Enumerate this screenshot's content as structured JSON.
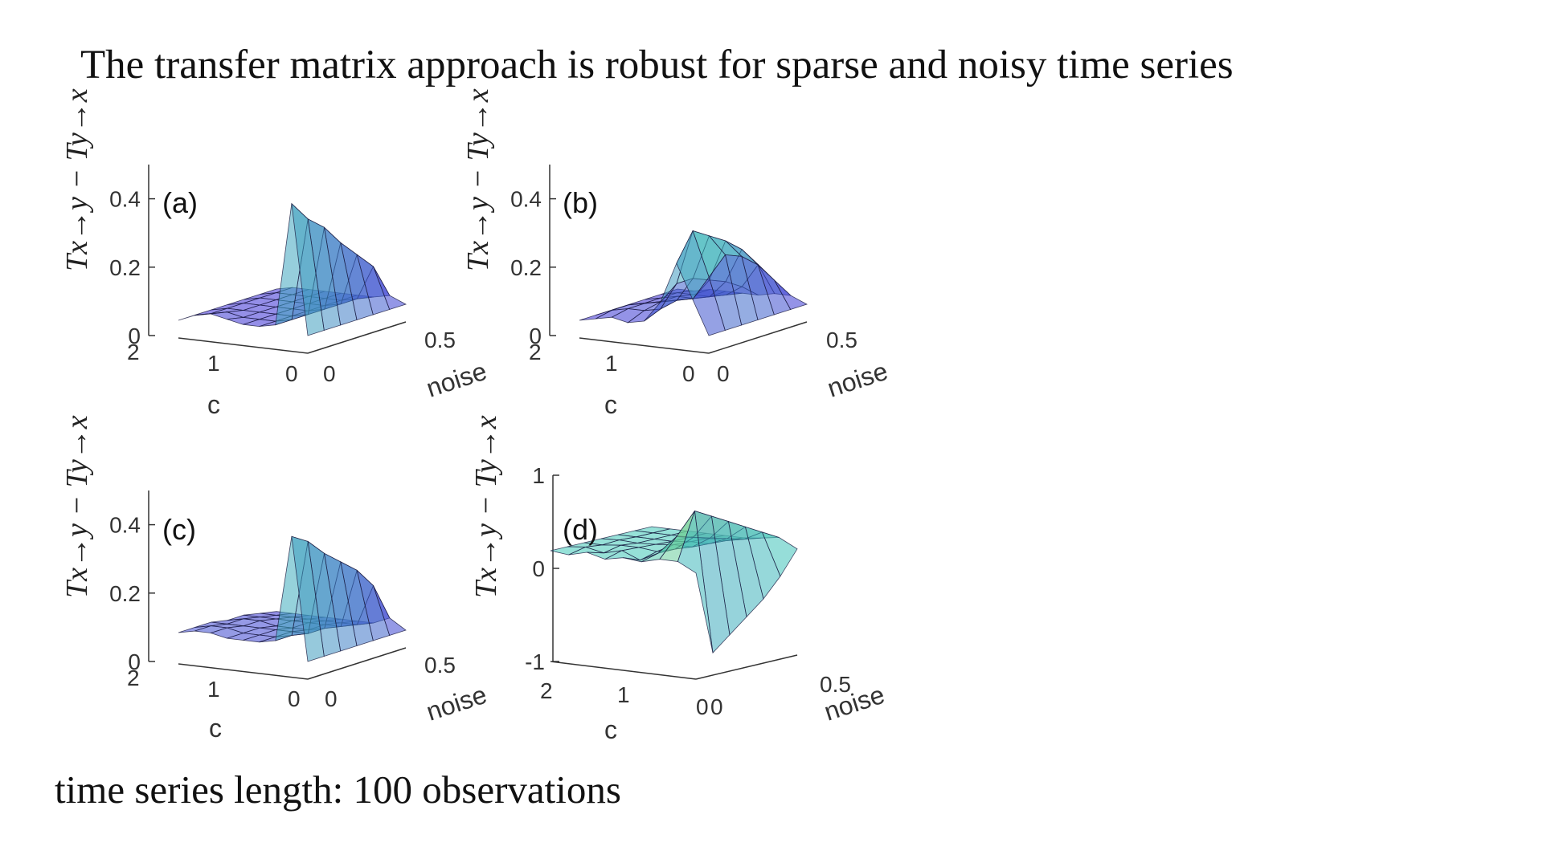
{
  "slide": {
    "title": "The transfer matrix approach is robust for sparse and noisy time series",
    "footer": "time series length: 100 observations"
  },
  "colors": {
    "low": "#3d2bd6",
    "mid": "#40c8b8",
    "high": "#f5e23a",
    "axis": "#333333"
  },
  "chart_data": [
    {
      "type": "surface3d",
      "label": "(a)",
      "zlabel": "Tx→y − Ty→x",
      "xlabel": "c",
      "ylabel": "noise",
      "c_ticks": [
        "2",
        "1",
        "0"
      ],
      "noise_ticks": [
        "0",
        "0.5"
      ],
      "z_ticks": [
        "0",
        "0.2",
        "0.4"
      ],
      "zlim": [
        0,
        0.5
      ],
      "c_range": [
        0,
        2
      ],
      "noise_range": [
        0,
        0.6
      ],
      "grid": {
        "c": [
          0,
          0.25,
          0.5,
          0.75,
          1,
          1.25,
          1.5,
          1.75,
          2
        ],
        "noise": [
          0,
          0.1,
          0.2,
          0.3,
          0.4,
          0.5,
          0.6
        ]
      },
      "z": [
        [
          0.0,
          0.0,
          0.0,
          0.0,
          0.0,
          0.0,
          0.0
        ],
        [
          0.38,
          0.32,
          0.28,
          0.22,
          0.17,
          0.12,
          0.02
        ],
        [
          0.02,
          0.02,
          0.02,
          0.02,
          0.02,
          0.02,
          0.01
        ],
        [
          0.01,
          0.01,
          0.01,
          0.01,
          0.01,
          0.01,
          0.01
        ],
        [
          0.01,
          0.01,
          0.01,
          0.01,
          0.01,
          0.01,
          0.01
        ],
        [
          0.02,
          0.01,
          0.01,
          0.01,
          0.01,
          0.01,
          0.01
        ],
        [
          0.03,
          0.02,
          0.01,
          0.01,
          0.01,
          0.01,
          0.01
        ],
        [
          0.02,
          0.01,
          0.01,
          0.01,
          0.01,
          0.01,
          0.01
        ],
        [
          0.0,
          0.0,
          0.0,
          0.0,
          0.0,
          0.0,
          0.0
        ]
      ]
    },
    {
      "type": "surface3d",
      "label": "(b)",
      "zlabel": "Tx→y − Ty→x",
      "xlabel": "c",
      "ylabel": "noise",
      "c_ticks": [
        "2",
        "1",
        "0"
      ],
      "noise_ticks": [
        "0",
        "0.5"
      ],
      "z_ticks": [
        "0",
        "0.2",
        "0.4"
      ],
      "zlim": [
        0,
        0.5
      ],
      "c_range": [
        0,
        2
      ],
      "noise_range": [
        0,
        0.6
      ],
      "grid": {
        "c": [
          0,
          0.25,
          0.5,
          0.75,
          1,
          1.25,
          1.5,
          1.75,
          2
        ],
        "noise": [
          0,
          0.1,
          0.2,
          0.3,
          0.4,
          0.5,
          0.6
        ]
      },
      "z": [
        [
          0.0,
          0.0,
          0.0,
          0.0,
          0.0,
          0.0,
          0.0
        ],
        [
          0.1,
          0.15,
          0.2,
          0.18,
          0.14,
          0.08,
          0.02
        ],
        [
          0.2,
          0.28,
          0.25,
          0.22,
          0.18,
          0.12,
          0.02
        ],
        [
          0.08,
          0.12,
          0.12,
          0.1,
          0.08,
          0.05,
          0.01
        ],
        [
          0.02,
          0.04,
          0.05,
          0.04,
          0.03,
          0.02,
          0.01
        ],
        [
          0.01,
          0.03,
          0.04,
          0.03,
          0.02,
          0.01,
          0.01
        ],
        [
          0.02,
          0.03,
          0.03,
          0.02,
          0.02,
          0.01,
          0.01
        ],
        [
          0.01,
          0.02,
          0.02,
          0.01,
          0.01,
          0.01,
          0.0
        ],
        [
          0.0,
          0.0,
          0.0,
          0.0,
          0.0,
          0.0,
          0.0
        ]
      ]
    },
    {
      "type": "surface3d",
      "label": "(c)",
      "zlabel": "Tx→y − Ty→x",
      "xlabel": "c",
      "ylabel": "noise",
      "c_ticks": [
        "2",
        "1",
        "0"
      ],
      "noise_ticks": [
        "0",
        "0.5"
      ],
      "z_ticks": [
        "0",
        "0.2",
        "0.4"
      ],
      "zlim": [
        0,
        0.5
      ],
      "c_range": [
        0,
        2
      ],
      "noise_range": [
        0,
        0.6
      ],
      "grid": {
        "c": [
          0,
          0.25,
          0.5,
          0.75,
          1,
          1.25,
          1.5,
          1.75,
          2
        ],
        "noise": [
          0,
          0.1,
          0.2,
          0.3,
          0.4,
          0.5,
          0.6
        ]
      },
      "z": [
        [
          0.0,
          0.0,
          0.0,
          0.0,
          0.0,
          0.0,
          0.0
        ],
        [
          0.36,
          0.33,
          0.28,
          0.24,
          0.2,
          0.14,
          0.03
        ],
        [
          0.05,
          0.05,
          0.04,
          0.04,
          0.03,
          0.02,
          0.01
        ],
        [
          0.04,
          0.04,
          0.04,
          0.03,
          0.03,
          0.02,
          0.01
        ],
        [
          0.04,
          0.04,
          0.04,
          0.03,
          0.03,
          0.02,
          0.01
        ],
        [
          0.04,
          0.04,
          0.04,
          0.03,
          0.03,
          0.02,
          0.01
        ],
        [
          0.05,
          0.05,
          0.04,
          0.04,
          0.03,
          0.02,
          0.01
        ],
        [
          0.05,
          0.05,
          0.04,
          0.04,
          0.03,
          0.02,
          0.01
        ],
        [
          0.04,
          0.04,
          0.04,
          0.03,
          0.03,
          0.02,
          0.01
        ]
      ]
    },
    {
      "type": "surface3d",
      "label": "(d)",
      "zlabel": "Tx→y − Ty→x",
      "xlabel": "c",
      "ylabel": "noise",
      "c_ticks": [
        "2",
        "1",
        "0"
      ],
      "noise_ticks": [
        "0",
        "0.5"
      ],
      "z_ticks": [
        "-1",
        "0",
        "1"
      ],
      "zlim": [
        -1,
        1
      ],
      "c_range": [
        0,
        2
      ],
      "noise_range": [
        0,
        0.6
      ],
      "grid": {
        "c": [
          0,
          0.25,
          0.5,
          0.75,
          1,
          1.25,
          1.5,
          1.75,
          2
        ],
        "noise": [
          0,
          0.1,
          0.2,
          0.3,
          0.4,
          0.5,
          0.6
        ]
      },
      "z": [
        [
          -0.05,
          -0.95,
          -0.8,
          -0.65,
          -0.5,
          -0.3,
          -0.05
        ],
        [
          0.05,
          0.55,
          0.45,
          0.35,
          0.25,
          0.15,
          0.05
        ],
        [
          0.05,
          0.25,
          0.2,
          0.15,
          0.1,
          0.05,
          0.02
        ],
        [
          0.0,
          0.05,
          0.05,
          0.03,
          0.02,
          0.01,
          0.0
        ],
        [
          0.02,
          -0.05,
          0.0,
          0.03,
          0.02,
          0.01,
          0.0
        ],
        [
          -0.02,
          0.03,
          0.02,
          0.01,
          0.0,
          0.0,
          0.0
        ],
        [
          0.03,
          -0.02,
          0.02,
          0.0,
          0.0,
          0.0,
          0.0
        ],
        [
          -0.02,
          0.02,
          0.0,
          0.01,
          0.0,
          0.0,
          0.0
        ],
        [
          0.0,
          0.0,
          0.0,
          0.0,
          0.0,
          0.0,
          0.0
        ]
      ]
    }
  ]
}
